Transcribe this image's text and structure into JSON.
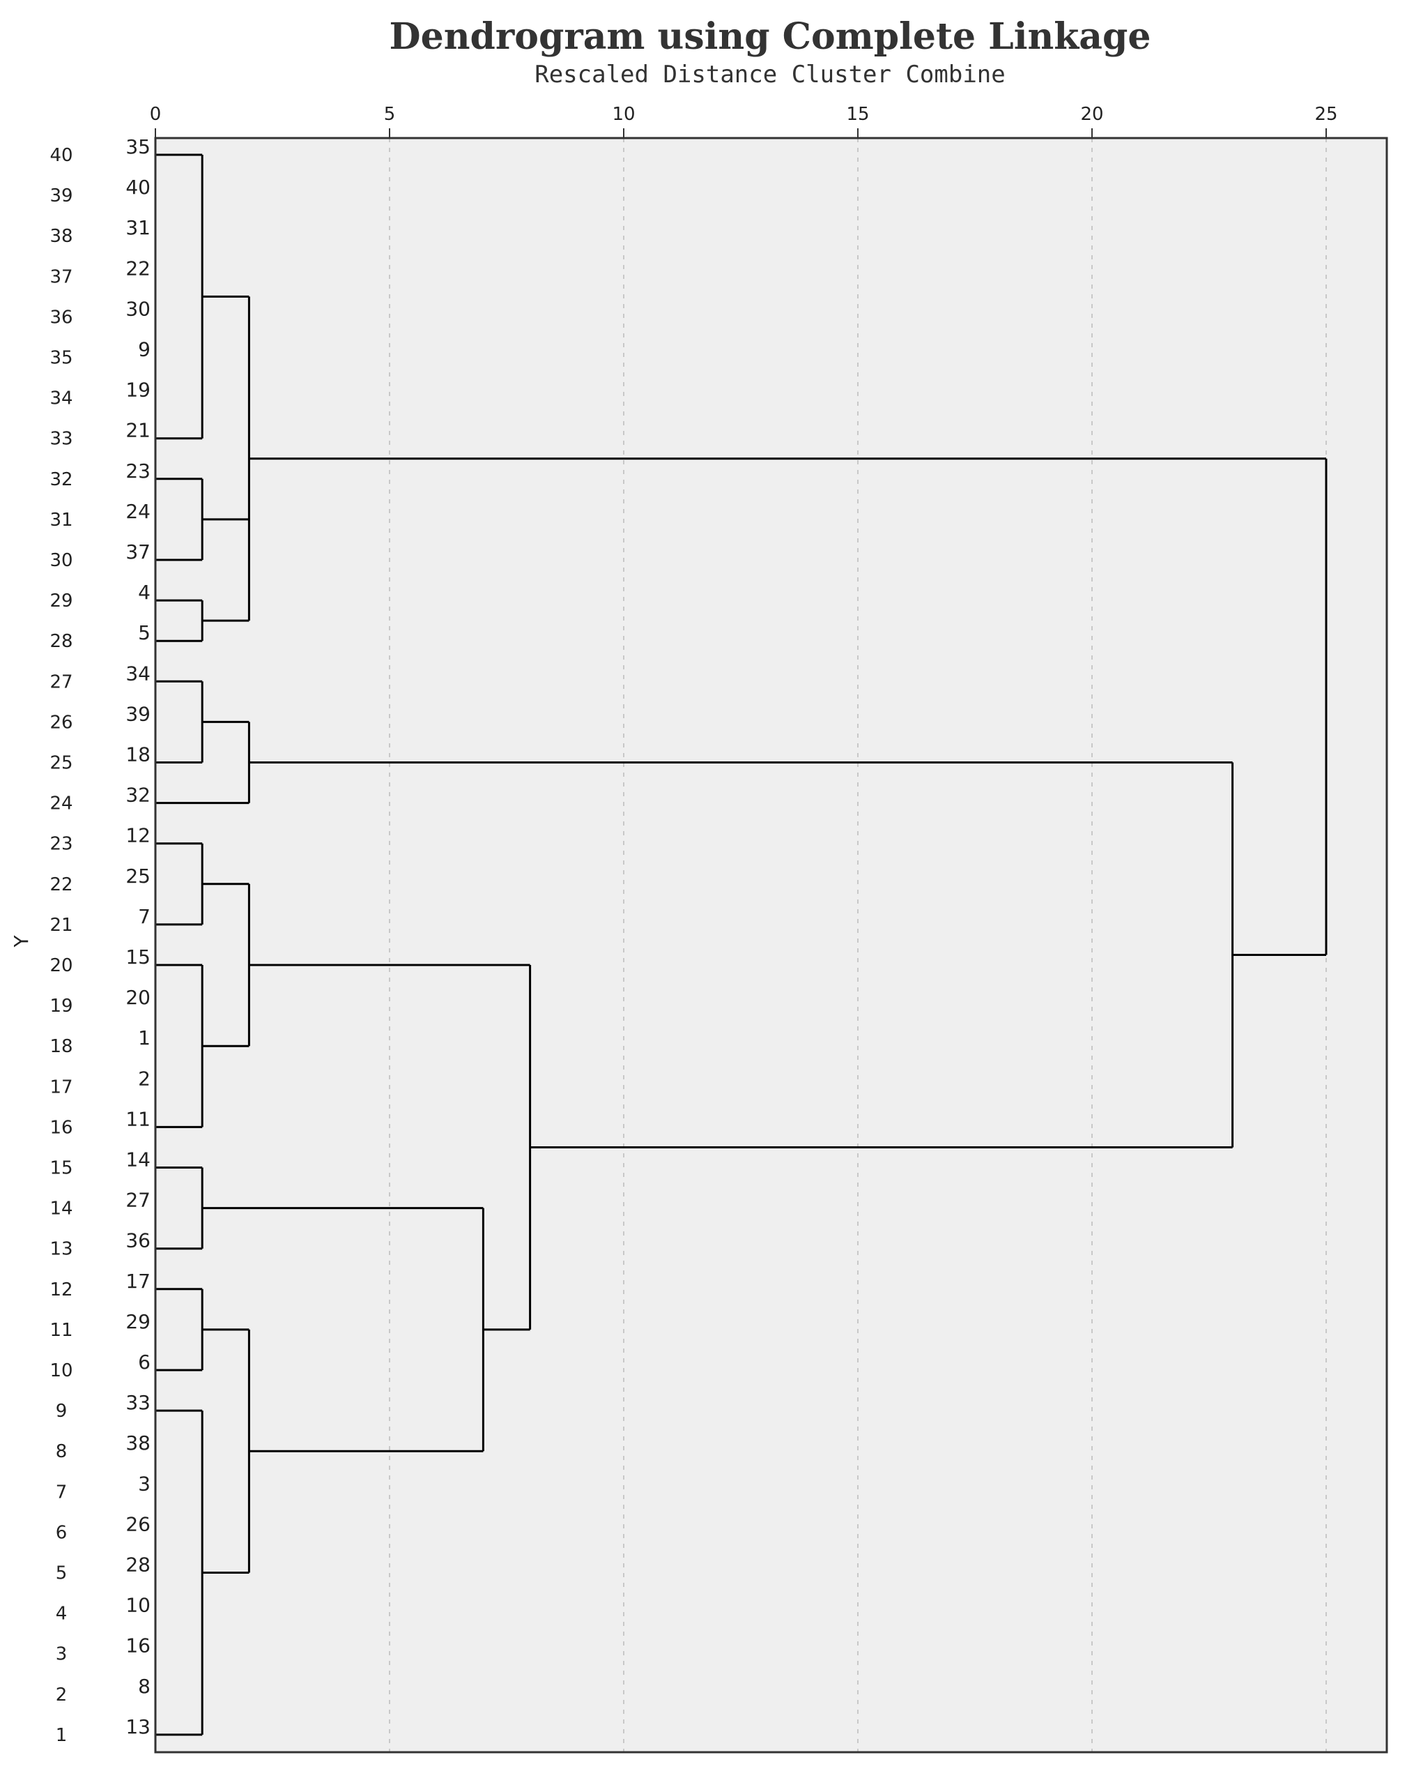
{
  "chart_data": {
    "type": "dendrogram",
    "title": "Dendrogram using Complete Linkage",
    "subtitle": "Rescaled Distance Cluster Combine",
    "y_axis_name": "Y",
    "x_axis": {
      "range": [
        0,
        25
      ],
      "ticks": [
        0,
        5,
        10,
        15,
        20,
        25
      ],
      "grid": true
    },
    "y_positions": [
      "40",
      "39",
      "38",
      "37",
      "36",
      "35",
      "34",
      "33",
      "32",
      "31",
      "30",
      "29",
      "28",
      "27",
      "26",
      "25",
      "24",
      "23",
      "22",
      "21",
      "20",
      "19",
      "18",
      "17",
      "16",
      "15",
      "14",
      "13",
      "12",
      "11",
      "10",
      "9",
      "8",
      "7",
      "6",
      "5",
      "4",
      "3",
      "2",
      "1"
    ],
    "leaves": [
      "35",
      "40",
      "31",
      "22",
      "30",
      "9",
      "19",
      "21",
      "23",
      "24",
      "37",
      "4",
      "5",
      "34",
      "39",
      "18",
      "32",
      "12",
      "25",
      "7",
      "15",
      "20",
      "1",
      "2",
      "11",
      "14",
      "27",
      "36",
      "17",
      "29",
      "6",
      "33",
      "38",
      "3",
      "26",
      "28",
      "10",
      "16",
      "8",
      "13"
    ],
    "merges": [
      {
        "children": [
          [
            "leaf",
            0
          ],
          [
            "leaf",
            7
          ]
        ],
        "height": 1
      },
      {
        "children": [
          [
            "leaf",
            8
          ],
          [
            "leaf",
            10
          ]
        ],
        "height": 1
      },
      {
        "children": [
          [
            "leaf",
            11
          ],
          [
            "leaf",
            12
          ]
        ],
        "height": 1
      },
      {
        "children": [
          [
            "merge",
            0
          ],
          [
            "merge",
            1
          ],
          [
            "merge",
            2
          ]
        ],
        "height": 2
      },
      {
        "children": [
          [
            "leaf",
            13
          ],
          [
            "leaf",
            15
          ]
        ],
        "height": 1
      },
      {
        "children": [
          [
            "merge",
            4
          ],
          [
            "leaf",
            16
          ]
        ],
        "height": 2
      },
      {
        "children": [
          [
            "leaf",
            17
          ],
          [
            "leaf",
            19
          ]
        ],
        "height": 1
      },
      {
        "children": [
          [
            "leaf",
            20
          ],
          [
            "leaf",
            24
          ]
        ],
        "height": 1
      },
      {
        "children": [
          [
            "merge",
            6
          ],
          [
            "merge",
            7
          ]
        ],
        "height": 2
      },
      {
        "children": [
          [
            "leaf",
            25
          ],
          [
            "leaf",
            27
          ]
        ],
        "height": 1
      },
      {
        "children": [
          [
            "leaf",
            28
          ],
          [
            "leaf",
            30
          ]
        ],
        "height": 1
      },
      {
        "children": [
          [
            "leaf",
            31
          ],
          [
            "leaf",
            39
          ]
        ],
        "height": 1
      },
      {
        "children": [
          [
            "merge",
            10
          ],
          [
            "merge",
            11
          ]
        ],
        "height": 2
      },
      {
        "children": [
          [
            "merge",
            9
          ],
          [
            "merge",
            12
          ]
        ],
        "height": 7
      },
      {
        "children": [
          [
            "merge",
            8
          ],
          [
            "merge",
            13
          ]
        ],
        "height": 8
      },
      {
        "children": [
          [
            "merge",
            5
          ],
          [
            "merge",
            14
          ]
        ],
        "height": 23
      },
      {
        "children": [
          [
            "merge",
            3
          ],
          [
            "merge",
            15
          ]
        ],
        "height": 25
      }
    ]
  },
  "colors": {
    "plot_background": "#efefef",
    "line": "#000000",
    "grid": "#c8c8c8",
    "frame": "#333333"
  }
}
